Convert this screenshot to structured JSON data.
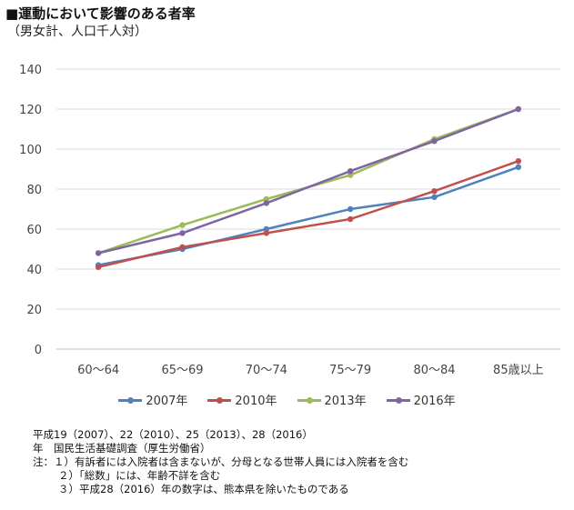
{
  "title": "■運動において影響のある者率",
  "subtitle": "（男女計、人口千人対）",
  "chart_data": {
    "type": "line",
    "categories": [
      "60～64",
      "65～69",
      "70～74",
      "75～79",
      "80～84",
      "85歳以上"
    ],
    "ylim": [
      0,
      140
    ],
    "yticks": [
      0,
      20,
      40,
      60,
      80,
      100,
      120,
      140
    ],
    "grid": true,
    "legend_position": "bottom",
    "series": [
      {
        "name": "2007年",
        "color": "#4f81bd",
        "values": [
          42,
          50,
          60,
          70,
          76,
          91
        ]
      },
      {
        "name": "2010年",
        "color": "#c0504d",
        "values": [
          41,
          51,
          58,
          65,
          79,
          94
        ]
      },
      {
        "name": "2013年",
        "color": "#9bbb59",
        "values": [
          48,
          62,
          75,
          87,
          105,
          120
        ]
      },
      {
        "name": "2016年",
        "color": "#8064a2",
        "values": [
          48,
          58,
          73,
          89,
          104,
          120
        ]
      }
    ]
  },
  "notes": {
    "line1": "平成19（2007）、22（2010）、25（2013）、28（2016）",
    "line2": "年　国民生活基礎調査（厚生労働省）",
    "line3": "注：１）有訴者には入院者は含まないが、分母となる世帯人員には入院者を含む",
    "line4": "２）「総数」には、年齢不詳を含む",
    "line5": "３）平成28（2016）年の数字は、熊本県を除いたものである"
  }
}
